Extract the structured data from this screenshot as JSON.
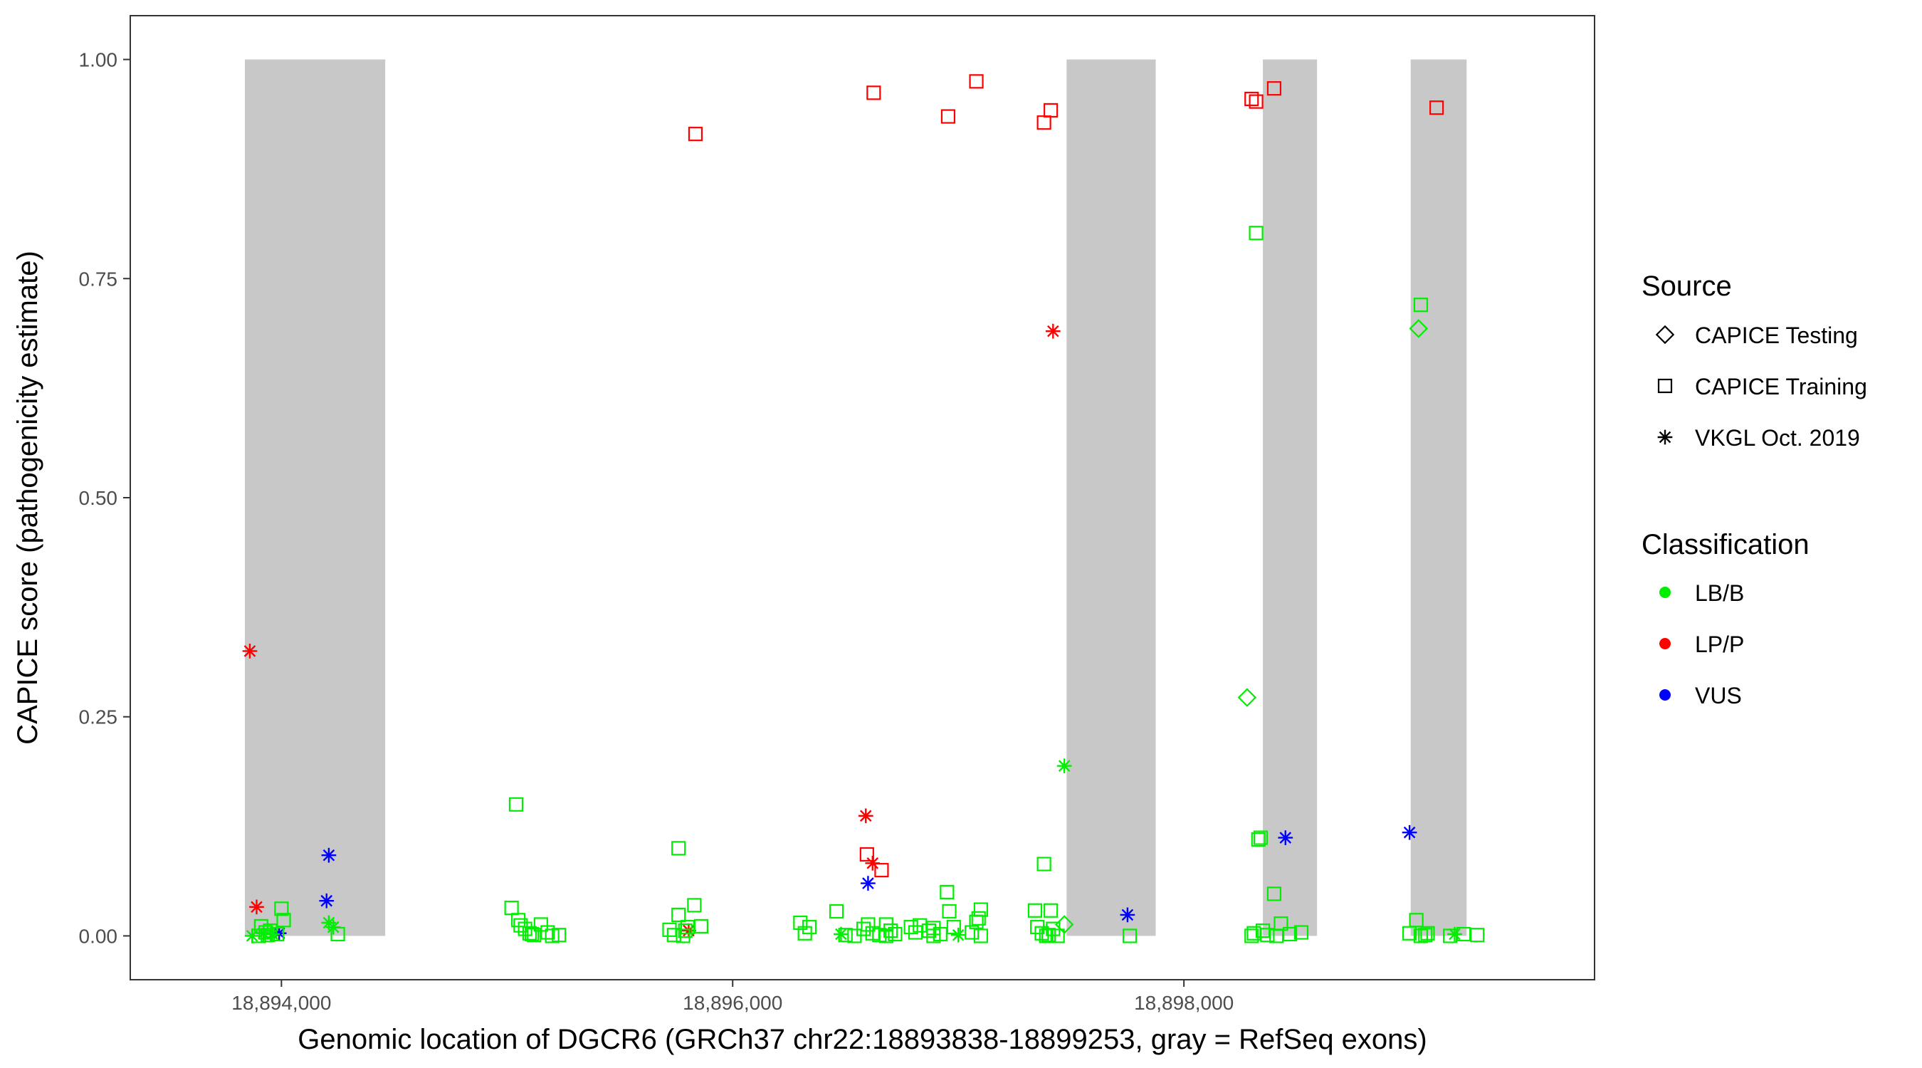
{
  "chart_data": {
    "type": "scatter",
    "title": "",
    "xlabel": "Genomic location of DGCR6 (GRCh37 chr22:18893838-18899253, gray = RefSeq exons)",
    "ylabel": "CAPICE score (pathogenicity estimate)",
    "xlim": [
      18893330,
      18899820
    ],
    "ylim": [
      -0.05,
      1.05
    ],
    "x_ticks": [
      18894000,
      18896000,
      18898000
    ],
    "x_tick_labels": [
      "18,894,000",
      "18,896,000",
      "18,898,000"
    ],
    "y_ticks": [
      0,
      0.25,
      0.5,
      0.75,
      1.0
    ],
    "y_tick_labels": [
      "0.00",
      "0.25",
      "0.50",
      "0.75",
      "1.00"
    ],
    "grid": false,
    "exons": [
      [
        18893838,
        18894460
      ],
      [
        18897480,
        18897875
      ],
      [
        18898350,
        18898590
      ],
      [
        18899005,
        18899253
      ]
    ],
    "legend": {
      "position": "right",
      "source": {
        "title": "Source",
        "items": [
          {
            "label": "CAPICE Testing",
            "shape": "diamond"
          },
          {
            "label": "CAPICE Training",
            "shape": "square"
          },
          {
            "label": "VKGL Oct. 2019",
            "shape": "asterisk"
          }
        ]
      },
      "classification": {
        "title": "Classification",
        "items": [
          {
            "label": "LB/B",
            "color": "#00ee00"
          },
          {
            "label": "LP/P",
            "color": "#ff0000"
          },
          {
            "label": "VUS",
            "color": "#0000ff"
          }
        ]
      }
    },
    "series": [
      {
        "source": "CAPICE Training",
        "classification": "LP/P",
        "shape": "square",
        "color": "#ff0000",
        "x": [
          18895835,
          18896625,
          18896955,
          18897080,
          18897380,
          18897410,
          18898300,
          18898320,
          18898400,
          18899120,
          18896595,
          18896660
        ],
        "y": [
          0.915,
          0.962,
          0.935,
          0.975,
          0.928,
          0.942,
          0.955,
          0.952,
          0.967,
          0.945,
          0.093,
          0.075
        ]
      },
      {
        "source": "VKGL Oct. 2019",
        "classification": "LP/P",
        "shape": "asterisk",
        "color": "#ff0000",
        "x": [
          18893860,
          18893890,
          18895805,
          18896590,
          18896620,
          18897420
        ],
        "y": [
          0.325,
          0.033,
          0.006,
          0.137,
          0.083,
          0.69
        ]
      },
      {
        "source": "VKGL Oct. 2019",
        "classification": "VUS",
        "shape": "asterisk",
        "color": "#0000ff",
        "x": [
          18893990,
          18894210,
          18894200,
          18896600,
          18897750,
          18898450,
          18899000
        ],
        "y": [
          0.003,
          0.092,
          0.04,
          0.06,
          0.024,
          0.112,
          0.118
        ]
      },
      {
        "source": "CAPICE Testing",
        "classification": "LB/B",
        "shape": "diamond",
        "color": "#00ee00",
        "x": [
          18898280,
          18899040,
          18897470
        ],
        "y": [
          0.272,
          0.693,
          0.013
        ]
      },
      {
        "source": "VKGL Oct. 2019",
        "classification": "LB/B",
        "shape": "asterisk",
        "color": "#00ee00",
        "x": [
          18893870,
          18893920,
          18893960,
          18894210,
          18894230,
          18896480,
          18897000,
          18897470,
          18899200
        ],
        "y": [
          0.0,
          0.003,
          0.002,
          0.015,
          0.01,
          0.002,
          0.001,
          0.194,
          0.002
        ]
      },
      {
        "source": "CAPICE Training",
        "classification": "LB/B",
        "shape": "square",
        "color": "#00ee00",
        "x": [
          18893900,
          18893930,
          18893950,
          18893980,
          18894000,
          18894010,
          18893910,
          18893940,
          18894250,
          18895040,
          18895020,
          18895060,
          18895080,
          18895100,
          18895120,
          18895150,
          18895180,
          18895200,
          18895230,
          18895050,
          18895110,
          18895760,
          18895720,
          18895740,
          18895780,
          18895790,
          18895800,
          18895830,
          18895860,
          18895760,
          18896300,
          18896320,
          18896340,
          18896460,
          18896500,
          18896540,
          18896580,
          18896600,
          18896620,
          18896650,
          18896680,
          18896700,
          18896720,
          18896680,
          18896790,
          18896810,
          18896830,
          18896870,
          18896890,
          18896920,
          18896950,
          18896960,
          18896980,
          18896890,
          18897060,
          18897080,
          18897090,
          18897100,
          18897100,
          18897340,
          18897350,
          18897370,
          18897390,
          18897400,
          18897420,
          18897440,
          18897380,
          18897410,
          18897760,
          18898320,
          18898330,
          18898340,
          18898310,
          18898300,
          18898350,
          18898370,
          18898400,
          18898430,
          18898470,
          18898410,
          18898520,
          18899000,
          18899030,
          18899050,
          18899070,
          18899080,
          18899180,
          18899240,
          18899300,
          18899050
        ],
        "y": [
          0.0,
          0.004,
          0.006,
          0.002,
          0.031,
          0.018,
          0.011,
          0.001,
          0.002,
          0.15,
          0.032,
          0.012,
          0.008,
          0.003,
          0.001,
          0.013,
          0.004,
          0.0,
          0.001,
          0.018,
          0.002,
          0.1,
          0.007,
          0.001,
          0.0,
          0.006,
          0.01,
          0.035,
          0.011,
          0.024,
          0.015,
          0.003,
          0.01,
          0.028,
          0.001,
          0.0,
          0.008,
          0.013,
          0.003,
          0.001,
          0.0,
          0.006,
          0.002,
          0.013,
          0.01,
          0.004,
          0.012,
          0.006,
          0.009,
          0.002,
          0.05,
          0.028,
          0.01,
          0.0,
          0.004,
          0.016,
          0.02,
          0.03,
          0.0,
          0.029,
          0.01,
          0.003,
          0.0,
          0.001,
          0.008,
          0.0,
          0.082,
          0.029,
          0.0,
          0.802,
          0.11,
          0.112,
          0.003,
          0.0,
          0.006,
          0.001,
          0.048,
          0.014,
          0.002,
          0.0,
          0.004,
          0.003,
          0.018,
          0.72,
          0.001,
          0.003,
          0.0,
          0.002,
          0.001,
          0.0
        ]
      }
    ]
  }
}
